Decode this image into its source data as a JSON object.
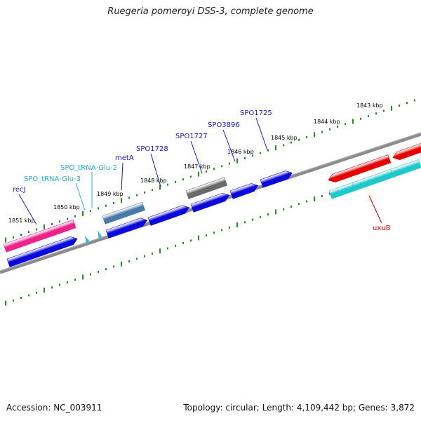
{
  "title": "Ruegeria pomeroyi DSS-3, complete genome",
  "footer": {
    "accession": "Accession: NC_003911",
    "stats": "Topology: circular; Length: 4,109,442 bp; Genes: 3,872"
  },
  "colors": {
    "forward_gene": "#0a0adc",
    "pink_gene": "#ee2288",
    "steel_gene": "#4a7aa8",
    "gray_gene": "#6a6a6a",
    "red_gene": "#e60000",
    "teal_gene": "#20c8cc",
    "trna": "#33b8e8",
    "tick": "#2a8a2a",
    "backbone": "#8c8c8c",
    "label_blue": "#1a1acc",
    "label_cyan": "#22b0d8",
    "label_red": "#cc0000"
  },
  "scale_labels": [
    "1843 kbp",
    "1844 kbp",
    "1845 kbp",
    "1846 kbp",
    "1847 kbp",
    "1848 kbp",
    "1849 kbp",
    "1850 kbp",
    "1851 kbp"
  ],
  "gene_labels": [
    {
      "name": "recJ",
      "color": "label_blue"
    },
    {
      "name": "SPO_tRNA-Glu-3",
      "color": "label_cyan"
    },
    {
      "name": "SPO_tRNA-Glu-2",
      "color": "label_cyan"
    },
    {
      "name": "metA",
      "color": "label_blue"
    },
    {
      "name": "SPO1728",
      "color": "label_blue"
    },
    {
      "name": "SPO1727",
      "color": "label_blue"
    },
    {
      "name": "SPO3896",
      "color": "label_blue"
    },
    {
      "name": "SPO1725",
      "color": "label_blue"
    },
    {
      "name": "uxuB",
      "color": "label_red"
    }
  ]
}
